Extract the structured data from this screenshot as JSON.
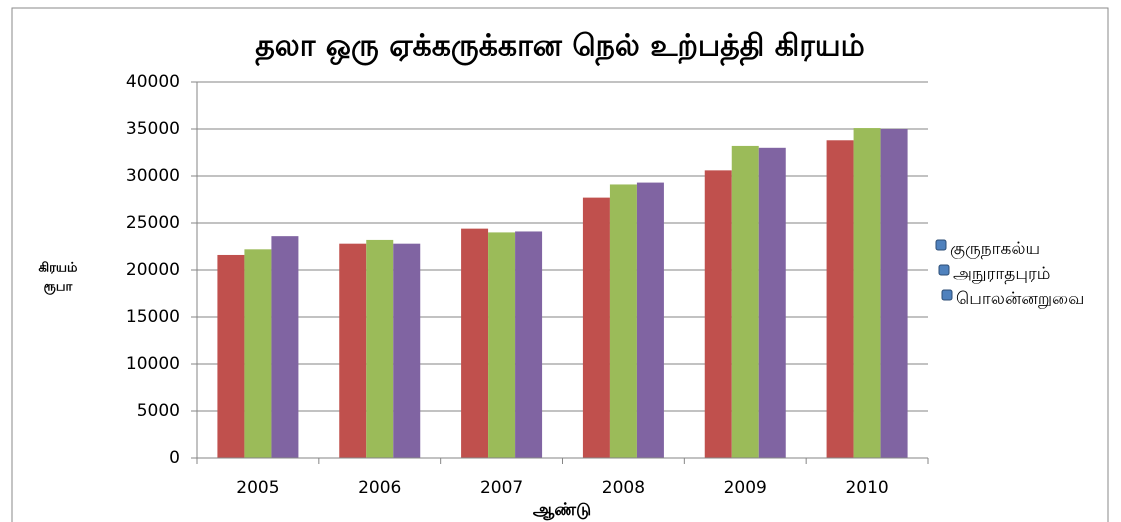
{
  "chart_data": {
    "type": "bar",
    "title": "தலா ஒரு ஏக்கருக்கான நெல் உற்பத்தி கிரயம்",
    "x_label": "ஆண்டு",
    "y_label": [
      "கிரயம்",
      "ரூபா"
    ],
    "categories": [
      "2005",
      "2006",
      "2007",
      "2008",
      "2009",
      "2010"
    ],
    "series": [
      {
        "name": "குருநாகல்ய",
        "color": "#c0504d",
        "values": [
          21600,
          22800,
          24400,
          27700,
          30600,
          33800
        ]
      },
      {
        "name": "அநுராதபுரம்",
        "color": "#9bbb59",
        "values": [
          22200,
          23200,
          24000,
          29100,
          33200,
          35100
        ]
      },
      {
        "name": "பொலன்னறுவை",
        "color": "#8064a2",
        "values": [
          23600,
          22800,
          24100,
          29300,
          33000,
          35000
        ]
      }
    ],
    "ylim": [
      0,
      40000
    ],
    "yticks": [
      0,
      5000,
      10000,
      15000,
      20000,
      25000,
      30000,
      35000,
      40000
    ],
    "grid": true,
    "legend": "right"
  }
}
